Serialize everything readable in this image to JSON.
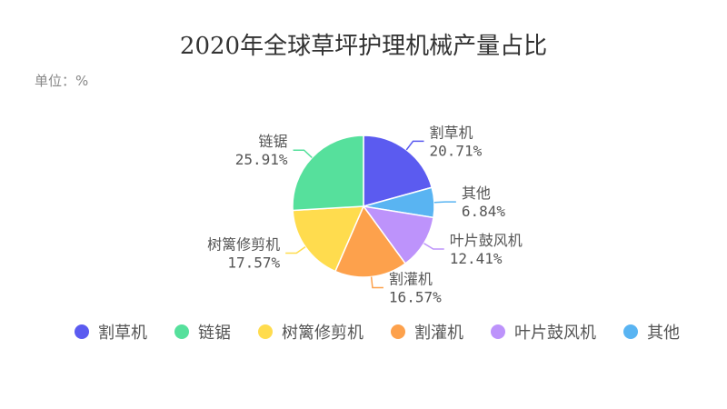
{
  "chart_data": {
    "type": "pie",
    "title": "2020年全球草坪护理机械产量占比",
    "unit_label": "单位：%",
    "slices": [
      {
        "name": "割草机",
        "value": 20.71,
        "label": "20.71%",
        "color": "#5b5bf0"
      },
      {
        "name": "其他",
        "value": 6.84,
        "label": "6.84%",
        "color": "#59b4f2"
      },
      {
        "name": "叶片鼓风机",
        "value": 12.41,
        "label": "12.41%",
        "color": "#bd93fb"
      },
      {
        "name": "割灌机",
        "value": 16.57,
        "label": "16.57%",
        "color": "#fda14c"
      },
      {
        "name": "树篱修剪机",
        "value": 17.57,
        "label": "17.57%",
        "color": "#ffdc4e"
      },
      {
        "name": "链锯",
        "value": 25.91,
        "label": "25.91%",
        "color": "#56e09c"
      }
    ],
    "legend": {
      "placement": "bottom",
      "items": [
        {
          "name": "割草机",
          "color": "#5b5bf0"
        },
        {
          "name": "链锯",
          "color": "#56e09c"
        },
        {
          "name": "树篱修剪机",
          "color": "#ffdc4e"
        },
        {
          "name": "割灌机",
          "color": "#fda14c"
        },
        {
          "name": "叶片鼓风机",
          "color": "#bd93fb"
        },
        {
          "name": "其他",
          "color": "#59b4f2"
        }
      ]
    }
  }
}
